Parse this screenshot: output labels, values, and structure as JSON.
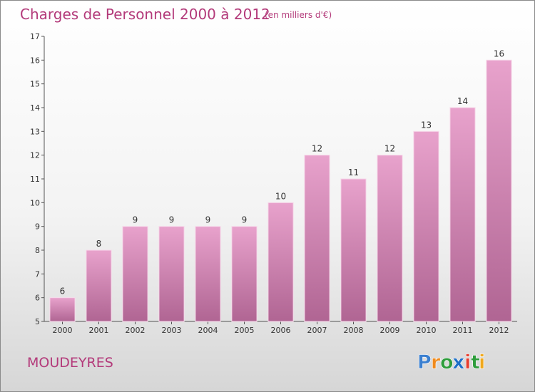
{
  "chart_data": {
    "type": "bar",
    "title": "Charges de Personnel 2000 à 2012",
    "subtitle": "(en milliers d'€)",
    "categories": [
      "2000",
      "2001",
      "2002",
      "2003",
      "2004",
      "2005",
      "2006",
      "2007",
      "2008",
      "2009",
      "2010",
      "2011",
      "2012"
    ],
    "values": [
      6,
      8,
      9,
      9,
      9,
      9,
      10,
      12,
      11,
      12,
      13,
      14,
      16
    ],
    "ylim": [
      5,
      17
    ],
    "yticks": [
      5,
      6,
      7,
      8,
      9,
      10,
      11,
      12,
      13,
      14,
      15,
      16,
      17
    ],
    "xlabel": "",
    "ylabel": "",
    "grid": false,
    "bar_color": "#c27aa6"
  },
  "commune": "MOUDEYRES",
  "logo": {
    "letters": [
      "P",
      "r",
      "o",
      "x",
      "i",
      "t",
      "i"
    ],
    "colors": [
      "#3a7fd0",
      "#f08a1c",
      "#2e9d3c",
      "#1f6fc6",
      "#e63d2e",
      "#2e9d3c",
      "#f0a81c"
    ]
  }
}
